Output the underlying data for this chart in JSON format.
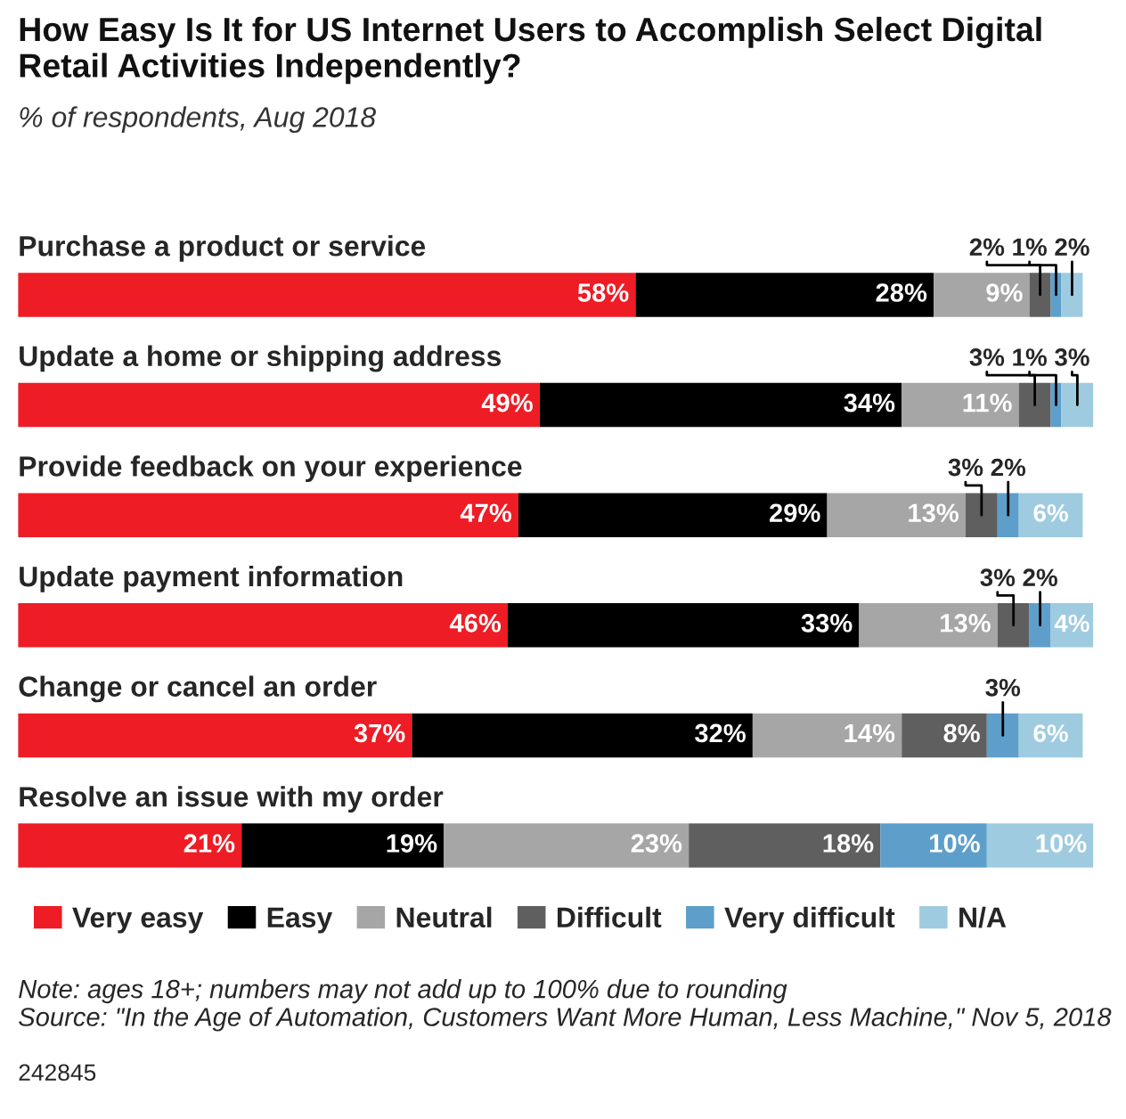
{
  "chart_data": {
    "type": "bar",
    "orientation": "horizontal",
    "stacked": true,
    "title": "How Easy Is It for US Internet Users to Accomplish Select Digital Retail Activities Independently?",
    "subtitle": "% of respondents, Aug 2018",
    "categories": [
      "Purchase a product or service",
      "Update a home or shipping address",
      "Provide feedback on your experience",
      "Update payment information",
      "Change or cancel an order",
      "Resolve an issue with my order"
    ],
    "series": [
      {
        "name": "Very easy",
        "color": "#ee1c25",
        "values": [
          58,
          49,
          47,
          46,
          37,
          21
        ],
        "value_labels": [
          "58%",
          "49%",
          "47%",
          "46%",
          "37%",
          "21%"
        ]
      },
      {
        "name": "Easy",
        "color": "#000000",
        "values": [
          28,
          34,
          29,
          33,
          32,
          19
        ],
        "value_labels": [
          "28%",
          "34%",
          "29%",
          "33%",
          "32%",
          "19%"
        ]
      },
      {
        "name": "Neutral",
        "color": "#a6a6a6",
        "values": [
          9,
          11,
          13,
          13,
          14,
          23
        ],
        "value_labels": [
          "9%",
          "11%",
          "13%",
          "13%",
          "14%",
          "23%"
        ]
      },
      {
        "name": "Difficult",
        "color": "#5f5f5f",
        "values": [
          2,
          3,
          3,
          3,
          8,
          18
        ],
        "value_labels": [
          "2%",
          "3%",
          "3%",
          "3%",
          "8%",
          "18%"
        ]
      },
      {
        "name": "Very difficult",
        "color": "#5d9fca",
        "values": [
          1,
          1,
          2,
          2,
          3,
          10
        ],
        "value_labels": [
          "1%",
          "1%",
          "2%",
          "2%",
          "3%",
          "10%"
        ]
      },
      {
        "name": "N/A",
        "color": "#9fcbe0",
        "values": [
          2,
          3,
          6,
          4,
          6,
          10
        ],
        "value_labels": [
          "2%",
          "3%",
          "6%",
          "4%",
          "6%",
          "10%"
        ]
      }
    ],
    "legend": "bottom",
    "annotations": [
      "Note: ages 18+; numbers may not add up to 100% due to rounding\nSource: \"In the Age of Automation, Customers Want More Human, Less Machine,\" Nov 5, 2018",
      "242845"
    ]
  }
}
